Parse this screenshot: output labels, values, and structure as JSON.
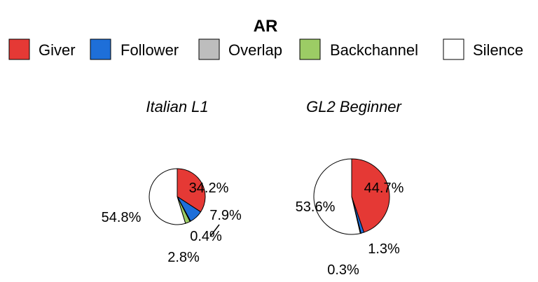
{
  "chart_data": {
    "type": "pie",
    "title": "AR",
    "legend": {
      "placement": "top",
      "entries": [
        {
          "name": "Giver",
          "color": "#e53935"
        },
        {
          "name": "Follower",
          "color": "#1e6fd9"
        },
        {
          "name": "Overlap",
          "color": "#bdbdbd"
        },
        {
          "name": "Backchannel",
          "color": "#9ccc65"
        },
        {
          "name": "Silence",
          "color": "#ffffff"
        }
      ]
    },
    "pies": [
      {
        "title": "Italian L1",
        "categories": [
          "Giver",
          "Follower",
          "Overlap",
          "Backchannel",
          "Silence"
        ],
        "values": [
          34.2,
          7.9,
          0.4,
          2.8,
          54.8
        ],
        "labels": [
          "34.2%",
          "7.9%",
          "0.4%",
          "2.8%",
          "54.8%"
        ]
      },
      {
        "title": "GL2 Beginner",
        "categories": [
          "Giver",
          "Follower",
          "Overlap",
          "Silence"
        ],
        "values": [
          44.7,
          1.3,
          0.3,
          53.6
        ],
        "labels": [
          "44.7%",
          "1.3%",
          "0.3%",
          "53.6%"
        ]
      }
    ]
  }
}
